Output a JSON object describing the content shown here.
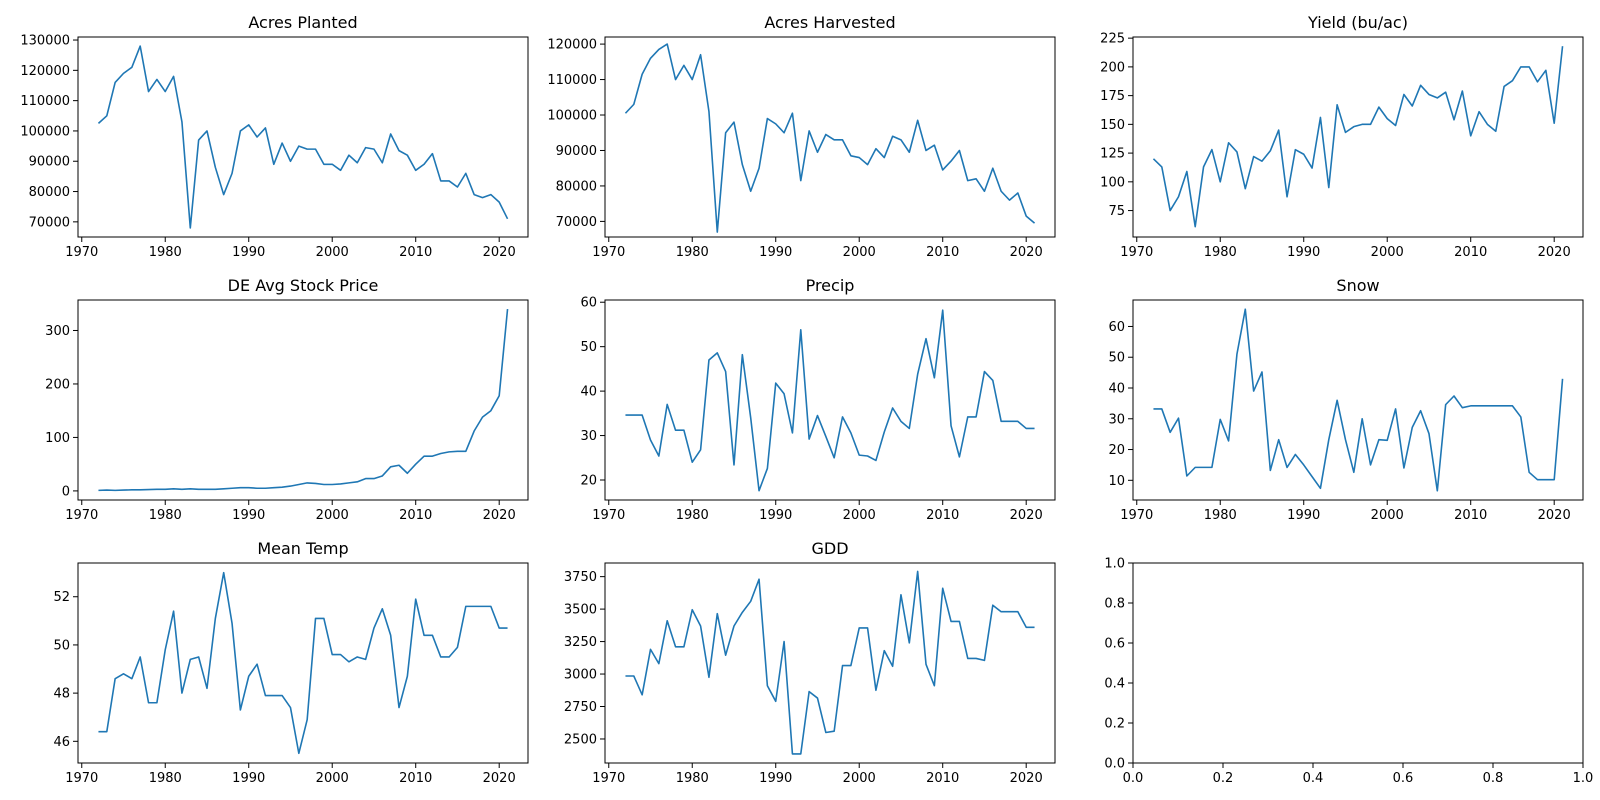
{
  "chart_data": [
    {
      "type": "line",
      "title": "Acres Planted",
      "xlabel": "",
      "ylabel": "",
      "xlim": [
        1969.55,
        2023.45
      ],
      "ylim": [
        65000,
        131000
      ],
      "xticks": [
        1970,
        1980,
        1990,
        2000,
        2010,
        2020
      ],
      "yticks": [
        70000,
        80000,
        90000,
        100000,
        110000,
        120000,
        130000
      ],
      "x": [
        1972,
        1973,
        1974,
        1975,
        1976,
        1977,
        1978,
        1979,
        1980,
        1981,
        1982,
        1983,
        1984,
        1985,
        1986,
        1987,
        1988,
        1989,
        1990,
        1991,
        1992,
        1993,
        1994,
        1995,
        1996,
        1997,
        1998,
        1999,
        2000,
        2001,
        2002,
        2003,
        2004,
        2005,
        2006,
        2007,
        2008,
        2009,
        2010,
        2011,
        2012,
        2013,
        2014,
        2015,
        2016,
        2017,
        2018,
        2019,
        2020,
        2021
      ],
      "series": [
        {
          "values": [
            102500,
            105000,
            116000,
            119000,
            121000,
            128000,
            113000,
            117000,
            113000,
            118000,
            103000,
            68000,
            97000,
            100000,
            88000,
            79000,
            86000,
            100000,
            102000,
            98000,
            101000,
            89000,
            96000,
            90000,
            95000,
            94000,
            94000,
            89000,
            89000,
            87000,
            92000,
            89500,
            94500,
            94000,
            89500,
            99000,
            93500,
            92000,
            87000,
            89000,
            92500,
            83500,
            83500,
            81500,
            86000,
            79000,
            78000,
            79000,
            76500,
            71000
          ]
        }
      ]
    },
    {
      "type": "line",
      "title": "Acres Harvested",
      "xlabel": "",
      "ylabel": "",
      "xlim": [
        1969.55,
        2023.45
      ],
      "ylim": [
        65600,
        122000
      ],
      "xticks": [
        1970,
        1980,
        1990,
        2000,
        2010,
        2020
      ],
      "yticks": [
        70000,
        80000,
        90000,
        100000,
        110000,
        120000
      ],
      "x": [
        1972,
        1973,
        1974,
        1975,
        1976,
        1977,
        1978,
        1979,
        1980,
        1981,
        1982,
        1983,
        1984,
        1985,
        1986,
        1987,
        1988,
        1989,
        1990,
        1991,
        1992,
        1993,
        1994,
        1995,
        1996,
        1997,
        1998,
        1999,
        2000,
        2001,
        2002,
        2003,
        2004,
        2005,
        2006,
        2007,
        2008,
        2009,
        2010,
        2011,
        2012,
        2013,
        2014,
        2015,
        2016,
        2017,
        2018,
        2019,
        2020,
        2021
      ],
      "series": [
        {
          "values": [
            100500,
            103000,
            111500,
            116000,
            118500,
            120000,
            110000,
            114000,
            110000,
            117000,
            101000,
            67000,
            95000,
            98000,
            86000,
            78500,
            85000,
            99000,
            97500,
            95000,
            100500,
            81500,
            95500,
            89500,
            94500,
            93000,
            93000,
            88500,
            88000,
            86000,
            90500,
            88000,
            94000,
            93000,
            89500,
            98500,
            90000,
            91500,
            84500,
            87000,
            90000,
            81500,
            82000,
            78500,
            85000,
            78500,
            76000,
            78000,
            71500,
            69500
          ]
        }
      ]
    },
    {
      "type": "line",
      "title": "Yield (bu/ac)",
      "xlabel": "",
      "ylabel": "",
      "xlim": [
        1969.55,
        2023.45
      ],
      "ylim": [
        52,
        226
      ],
      "xticks": [
        1970,
        1980,
        1990,
        2000,
        2010,
        2020
      ],
      "yticks": [
        75,
        100,
        125,
        150,
        175,
        200,
        225
      ],
      "x": [
        1972,
        1973,
        1974,
        1975,
        1976,
        1977,
        1978,
        1979,
        1980,
        1981,
        1982,
        1983,
        1984,
        1985,
        1986,
        1987,
        1988,
        1989,
        1990,
        1991,
        1992,
        1993,
        1994,
        1995,
        1996,
        1997,
        1998,
        1999,
        2000,
        2001,
        2002,
        2003,
        2004,
        2005,
        2006,
        2007,
        2008,
        2009,
        2010,
        2011,
        2012,
        2013,
        2014,
        2015,
        2016,
        2017,
        2018,
        2019,
        2020,
        2021
      ],
      "series": [
        {
          "values": [
            120,
            113,
            75,
            87,
            109,
            61,
            113,
            128,
            100,
            134,
            126,
            94,
            122,
            118,
            127,
            145,
            87,
            128,
            124,
            112,
            156,
            95,
            167,
            143,
            148,
            150,
            150,
            165,
            155,
            149,
            176,
            166,
            184,
            176,
            173,
            178,
            154,
            179,
            140,
            161,
            150,
            144,
            183,
            188,
            200,
            200,
            187,
            197,
            151,
            218
          ]
        }
      ]
    },
    {
      "type": "line",
      "title": "DE Avg Stock Price",
      "xlabel": "",
      "ylabel": "",
      "xlim": [
        1969.55,
        2023.45
      ],
      "ylim": [
        -17,
        357
      ],
      "xticks": [
        1970,
        1980,
        1990,
        2000,
        2010,
        2020
      ],
      "yticks": [
        0,
        100,
        200,
        300
      ],
      "x": [
        1972,
        1973,
        1974,
        1975,
        1976,
        1977,
        1978,
        1979,
        1980,
        1981,
        1982,
        1983,
        1984,
        1985,
        1986,
        1987,
        1988,
        1989,
        1990,
        1991,
        1992,
        1993,
        1994,
        1995,
        1996,
        1997,
        1998,
        1999,
        2000,
        2001,
        2002,
        2003,
        2004,
        2005,
        2006,
        2007,
        2008,
        2009,
        2010,
        2011,
        2012,
        2013,
        2014,
        2015,
        2016,
        2017,
        2018,
        2019,
        2020,
        2021
      ],
      "series": [
        {
          "values": [
            1,
            1.5,
            1,
            1.5,
            2,
            2,
            2.5,
            3,
            3,
            4,
            3,
            4,
            3,
            3,
            3,
            4,
            5,
            6,
            6,
            5,
            5,
            6,
            7,
            9,
            12,
            15,
            14,
            12,
            12,
            13,
            15,
            17,
            23,
            23,
            28,
            45,
            48,
            33,
            50,
            65,
            65,
            70,
            73,
            74,
            74,
            112,
            138,
            150,
            178,
            340
          ]
        }
      ]
    },
    {
      "type": "line",
      "title": "Precip",
      "xlabel": "",
      "ylabel": "",
      "xlim": [
        1969.55,
        2023.45
      ],
      "ylim": [
        15.5,
        60.5
      ],
      "xticks": [
        1970,
        1980,
        1990,
        2000,
        2010,
        2020
      ],
      "yticks": [
        20,
        30,
        40,
        50,
        60
      ],
      "x": [
        1972,
        1973,
        1974,
        1975,
        1976,
        1977,
        1978,
        1979,
        1980,
        1981,
        1982,
        1983,
        1984,
        1985,
        1986,
        1987,
        1988,
        1989,
        1990,
        1991,
        1992,
        1993,
        1994,
        1995,
        1996,
        1997,
        1998,
        1999,
        2000,
        2001,
        2002,
        2003,
        2004,
        2005,
        2006,
        2007,
        2008,
        2009,
        2010,
        2011,
        2012,
        2013,
        2014,
        2015,
        2016,
        2017,
        2018,
        2019,
        2020,
        2021
      ],
      "series": [
        {
          "values": [
            34.6,
            34.6,
            34.6,
            29,
            25.4,
            37,
            31.2,
            31.2,
            24,
            26.8,
            47,
            48.6,
            44.4,
            23.4,
            48.2,
            34,
            17.6,
            22.6,
            41.8,
            39.4,
            30.6,
            53.8,
            29.2,
            34.5,
            29.8,
            25,
            34.2,
            30.6,
            25.6,
            25.4,
            24.4,
            30.8,
            36.2,
            33.2,
            31.6,
            43.8,
            51.8,
            43,
            58.2,
            32.2,
            25.2,
            34.2,
            34.2,
            44.4,
            42.4,
            33.2,
            33.2,
            33.2,
            31.6,
            31.6
          ]
        }
      ]
    },
    {
      "type": "line",
      "title": "Snow",
      "xlabel": "",
      "ylabel": "",
      "xlim": [
        1969.55,
        2023.45
      ],
      "ylim": [
        3.6,
        68.6
      ],
      "xticks": [
        1970,
        1980,
        1990,
        2000,
        2010,
        2020
      ],
      "yticks": [
        10,
        20,
        30,
        40,
        50,
        60
      ],
      "x": [
        1972,
        1973,
        1974,
        1975,
        1976,
        1977,
        1978,
        1979,
        1980,
        1981,
        1982,
        1983,
        1984,
        1985,
        1986,
        1987,
        1988,
        1989,
        1990,
        1991,
        1992,
        1993,
        1994,
        1995,
        1996,
        1997,
        1998,
        1999,
        2000,
        2001,
        2002,
        2003,
        2004,
        2005,
        2006,
        2007,
        2008,
        2009,
        2010,
        2011,
        2012,
        2013,
        2014,
        2015,
        2016,
        2017,
        2018,
        2019,
        2020,
        2021
      ],
      "series": [
        {
          "values": [
            33.2,
            33.2,
            25.6,
            30.2,
            11.4,
            14.2,
            14.2,
            14.2,
            29.8,
            22.8,
            51,
            65.6,
            39,
            45.2,
            13.2,
            23.2,
            14.2,
            18.4,
            15,
            11.2,
            7.4,
            23.2,
            36,
            23.2,
            12.6,
            30,
            15,
            23.2,
            23,
            33.2,
            14,
            27.2,
            32.6,
            25.2,
            6.6,
            34.6,
            37.4,
            33.6,
            34.2,
            34.2,
            34.2,
            34.2,
            34.2,
            34.2,
            30.6,
            12.6,
            10.2,
            10.2,
            10.2,
            43
          ]
        }
      ]
    },
    {
      "type": "line",
      "title": "Mean Temp",
      "xlabel": "",
      "ylabel": "",
      "xlim": [
        1969.55,
        2023.45
      ],
      "ylim": [
        45.1,
        53.4
      ],
      "xticks": [
        1970,
        1980,
        1990,
        2000,
        2010,
        2020
      ],
      "yticks": [
        46,
        48,
        50,
        52
      ],
      "x": [
        1972,
        1973,
        1974,
        1975,
        1976,
        1977,
        1978,
        1979,
        1980,
        1981,
        1982,
        1983,
        1984,
        1985,
        1986,
        1987,
        1988,
        1989,
        1990,
        1991,
        1992,
        1993,
        1994,
        1995,
        1996,
        1997,
        1998,
        1999,
        2000,
        2001,
        2002,
        2003,
        2004,
        2005,
        2006,
        2007,
        2008,
        2009,
        2010,
        2011,
        2012,
        2013,
        2014,
        2015,
        2016,
        2017,
        2018,
        2019,
        2020,
        2021
      ],
      "series": [
        {
          "values": [
            46.4,
            46.4,
            48.6,
            48.8,
            48.6,
            49.5,
            47.6,
            47.6,
            49.8,
            51.4,
            48,
            49.4,
            49.5,
            48.2,
            51.1,
            53,
            50.9,
            47.3,
            48.7,
            49.2,
            47.9,
            47.9,
            47.9,
            47.4,
            45.5,
            46.9,
            51.1,
            51.1,
            49.6,
            49.6,
            49.3,
            49.5,
            49.4,
            50.7,
            51.5,
            50.4,
            47.4,
            48.7,
            51.9,
            50.4,
            50.4,
            49.5,
            49.5,
            49.9,
            51.6,
            51.6,
            51.6,
            51.6,
            50.7,
            50.7
          ]
        }
      ]
    },
    {
      "type": "line",
      "title": "GDD",
      "xlabel": "",
      "ylabel": "",
      "xlim": [
        1969.55,
        2023.45
      ],
      "ylim": [
        2315,
        3855
      ],
      "xticks": [
        1970,
        1980,
        1990,
        2000,
        2010,
        2020
      ],
      "yticks": [
        2500,
        2750,
        3000,
        3250,
        3500,
        3750
      ],
      "x": [
        1972,
        1973,
        1974,
        1975,
        1976,
        1977,
        1978,
        1979,
        1980,
        1981,
        1982,
        1983,
        1984,
        1985,
        1986,
        1987,
        1988,
        1989,
        1990,
        1991,
        1992,
        1993,
        1994,
        1995,
        1996,
        1997,
        1998,
        1999,
        2000,
        2001,
        2002,
        2003,
        2004,
        2005,
        2006,
        2007,
        2008,
        2009,
        2010,
        2011,
        2012,
        2013,
        2014,
        2015,
        2016,
        2017,
        2018,
        2019,
        2020,
        2021
      ],
      "series": [
        {
          "values": [
            2985,
            2985,
            2840,
            3190,
            3080,
            3410,
            3210,
            3210,
            3495,
            3370,
            2975,
            3465,
            3145,
            3370,
            3475,
            3560,
            3730,
            2910,
            2790,
            3250,
            2385,
            2385,
            2865,
            2815,
            2550,
            2560,
            3065,
            3065,
            3355,
            3355,
            2875,
            3180,
            3060,
            3610,
            3240,
            3790,
            3075,
            2910,
            3660,
            3405,
            3405,
            3120,
            3120,
            3105,
            3530,
            3480,
            3480,
            3480,
            3360,
            3360
          ]
        }
      ]
    },
    {
      "type": "line",
      "title": "",
      "xlabel": "",
      "ylabel": "",
      "xlim": [
        0,
        1
      ],
      "ylim": [
        0,
        1
      ],
      "xticks": [
        0.0,
        0.2,
        0.4,
        0.6,
        0.8,
        1.0
      ],
      "yticks": [
        0.0,
        0.2,
        0.4,
        0.6,
        0.8,
        1.0
      ],
      "series": []
    }
  ],
  "style": {
    "line_color": "#1f77b4",
    "axis_color": "#000000",
    "background": "#ffffff"
  }
}
